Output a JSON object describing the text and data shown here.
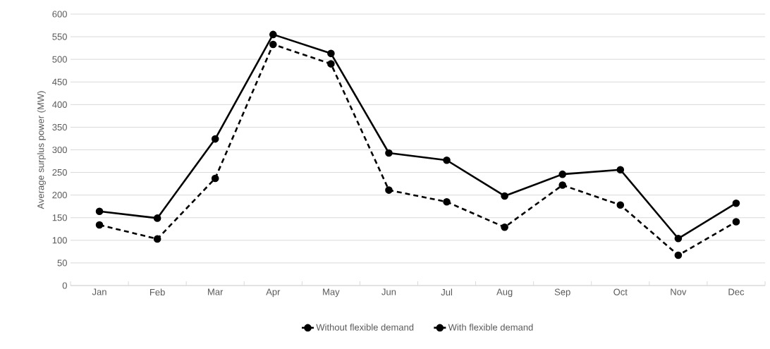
{
  "chart_data": {
    "type": "line",
    "ylabel": "Average surplus power (MW)",
    "categories": [
      "Jan",
      "Feb",
      "Mar",
      "Apr",
      "May",
      "Jun",
      "Jul",
      "Aug",
      "Sep",
      "Oct",
      "Nov",
      "Dec"
    ],
    "series": [
      {
        "name": "Without flexible demand",
        "color": "#000000",
        "line_style": "solid",
        "values": [
          164,
          149,
          324,
          555,
          513,
          293,
          277,
          198,
          246,
          256,
          104,
          182
        ]
      },
      {
        "name": "With flexible demand",
        "color": "#000000",
        "line_style": "dashed",
        "values": [
          134,
          103,
          237,
          533,
          490,
          211,
          185,
          129,
          222,
          178,
          67,
          141
        ]
      }
    ],
    "ylim": [
      0,
      600
    ],
    "yticks": [
      0,
      50,
      100,
      150,
      200,
      250,
      300,
      350,
      400,
      450,
      500,
      550,
      600
    ],
    "grid": "y",
    "legend": "bottom",
    "marker": "circle"
  }
}
